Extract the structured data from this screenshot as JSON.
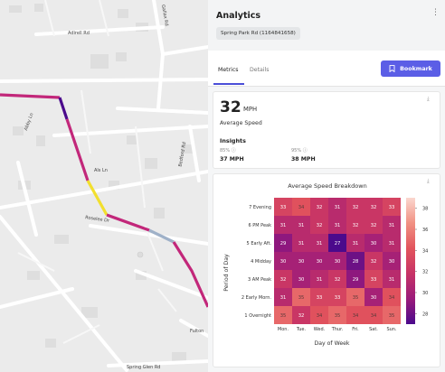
{
  "map": {
    "streets": [
      "Adirell Rd",
      "Gallax Rd",
      "Abby Ln",
      "Bedford Rd",
      "Als Ln",
      "Roselee Dr",
      "Fulton",
      "Spring Glen Rd"
    ]
  },
  "panel": {
    "title": "Analytics",
    "menu_icon": "kebab-icon",
    "location": "Spring Park Rd (1164841658)",
    "tabs": [
      {
        "label": "Metrics",
        "active": true
      },
      {
        "label": "Details",
        "active": false
      }
    ],
    "bookmark_label": "Bookmark",
    "bookmark_icon": "bookmark-icon",
    "accent": "#5b5ee6"
  },
  "speed": {
    "value": "32",
    "unit": "MPH",
    "label": "Average Speed",
    "insights_label": "Insights",
    "insights": [
      {
        "pct": "85%",
        "value": "37 MPH"
      },
      {
        "pct": "95%",
        "value": "38 MPH"
      }
    ]
  },
  "chart_data": {
    "type": "heatmap",
    "title": "Average Speed Breakdown",
    "xlabel": "Day of Week",
    "ylabel": "Period of Day",
    "x": [
      "Mon.",
      "Tue.",
      "Wed.",
      "Thur.",
      "Fri.",
      "Sat.",
      "Sun."
    ],
    "y": [
      "7 Evening",
      "6 PM Peak",
      "5 Early Aft.",
      "4 Midday",
      "3 AM Peak",
      "2 Early Morn.",
      "1 Overnight"
    ],
    "values": [
      [
        33,
        34,
        32,
        31,
        32,
        32,
        33
      ],
      [
        31,
        31,
        32,
        31,
        32,
        32,
        31
      ],
      [
        29,
        31,
        31,
        27,
        31,
        30,
        31
      ],
      [
        30,
        30,
        30,
        30,
        28,
        32,
        30
      ],
      [
        32,
        30,
        31,
        32,
        29,
        33,
        31
      ],
      [
        31,
        35,
        33,
        33,
        35,
        30,
        34
      ],
      [
        35,
        32,
        34,
        35,
        34,
        34,
        35
      ]
    ],
    "colorbar_ticks": [
      38,
      36,
      34,
      32,
      30,
      28
    ],
    "colorbar_range": [
      27,
      39
    ],
    "colormap": [
      "#4b0a8c",
      "#9b1b7b",
      "#c73366",
      "#e2545c",
      "#f19183",
      "#fbd7cf"
    ]
  }
}
